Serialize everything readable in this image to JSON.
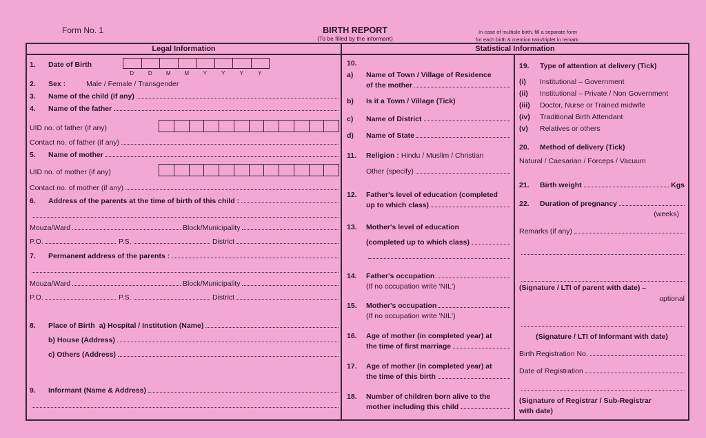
{
  "header": {
    "form_no": "Form No. 1",
    "title": "BIRTH REPORT",
    "subtitle": "(To be filled by the informant)",
    "note_line1": "In case of multiple birth, fill a separate form",
    "note_line2": "for each birth & mention twin/triplet in remark"
  },
  "sections": {
    "legal": "Legal Information",
    "statistical": "Statistical Information"
  },
  "legal": {
    "q1": {
      "num": "1.",
      "label": "Date of Birth",
      "box_letters": [
        "D",
        "D",
        "M",
        "M",
        "Y",
        "Y",
        "Y",
        "Y"
      ]
    },
    "q2": {
      "num": "2.",
      "label": "Sex :",
      "options": "Male / Female / Transgender"
    },
    "q3": {
      "num": "3.",
      "label": "Name of the child (if any)"
    },
    "q4": {
      "num": "4.",
      "label": "Name of the father"
    },
    "uid_father": "UID no. of father (if any)",
    "contact_father": "Contact no. of father (if any)",
    "q5": {
      "num": "5.",
      "label": "Name of mother"
    },
    "uid_mother": "UID no. of mother (if any)",
    "contact_mother": "Contact no. of mother (if any)",
    "q6": {
      "num": "6.",
      "label": "Address of the parents at the time of birth of this child :"
    },
    "address_fields": {
      "mouza": "Mouza/Ward",
      "block": "Block/Municipality",
      "po": "P.O.",
      "ps": "P.S.",
      "district": "District"
    },
    "q7": {
      "num": "7.",
      "label": "Permanent address of the parents :"
    },
    "q8": {
      "num": "8.",
      "label": "Place of Birth",
      "a": "a) Hospital / Institution (Name)",
      "b": "b) House (Address)",
      "c": "c) Others (Address)"
    },
    "q9": {
      "num": "9.",
      "label": "Informant (Name & Address)"
    }
  },
  "statistical": {
    "q10": {
      "num": "10.",
      "a_marker": "a)",
      "a": "Name of Town / Village of Residence",
      "a2": "of the mother",
      "b_marker": "b)",
      "b": "Is it a Town / Village (Tick)",
      "c_marker": "c)",
      "c": "Name of District",
      "d_marker": "d)",
      "d": "Name of State"
    },
    "q11": {
      "num": "11.",
      "label": "Religion :",
      "options": "Hindu / Muslim / Christian",
      "other": "Other (specify)"
    },
    "q12": {
      "num": "12.",
      "line1": "Father's level of education (completed",
      "line2": "up to which class)"
    },
    "q13": {
      "num": "13.",
      "line1": "Mother's level of education",
      "line2": "(completed up to which class)"
    },
    "q14": {
      "num": "14.",
      "label": "Father's occupation",
      "note": "(If no occupation write 'NIL')"
    },
    "q15": {
      "num": "15.",
      "label": "Mother's occupation",
      "note": "(If no occupation write 'NIL')"
    },
    "q16": {
      "num": "16.",
      "line1": "Age of mother (in completed year) at",
      "line2": "the time of first marriage"
    },
    "q17": {
      "num": "17.",
      "line1": "Age of mother (in completed year) at",
      "line2": "the time of this birth"
    },
    "q18": {
      "num": "18.",
      "line1": "Number of children born alive to the",
      "line2": "mother including this child"
    },
    "q19": {
      "num": "19.",
      "label": "Type of attention at delivery (Tick)",
      "options": [
        {
          "marker": "(i)",
          "text": "Institutional – Government"
        },
        {
          "marker": "(ii)",
          "text": "Institutional – Private / Non Government"
        },
        {
          "marker": "(iii)",
          "text": "Doctor, Nurse or Trained midwife"
        },
        {
          "marker": "(iv)",
          "text": "Traditional Birth Attendant"
        },
        {
          "marker": "(v)",
          "text": "Relatives or others"
        }
      ]
    },
    "q20": {
      "num": "20.",
      "label": "Method of delivery (Tick)",
      "options": "Natural / Caesarian / Forceps / Vacuum"
    },
    "q21": {
      "num": "21.",
      "label": "Birth weight",
      "unit": "Kgs"
    },
    "q22": {
      "num": "22.",
      "label": "Duration of pregnancy",
      "unit": "(weeks)"
    },
    "remarks": "Remarks (if any)",
    "sig_parent": "(Signature / LTI of parent with date) –",
    "sig_parent_optional": "optional",
    "sig_informant": "(Signature / LTI of Informant with date)",
    "reg_no": "Birth Registration No.",
    "reg_date": "Date of Registration",
    "sig_registrar": "(Signature of Registrar / Sub-Registrar",
    "sig_registrar2": "with date)"
  },
  "colors": {
    "paper": "#f3a8d4",
    "ink": "#2a1626"
  }
}
